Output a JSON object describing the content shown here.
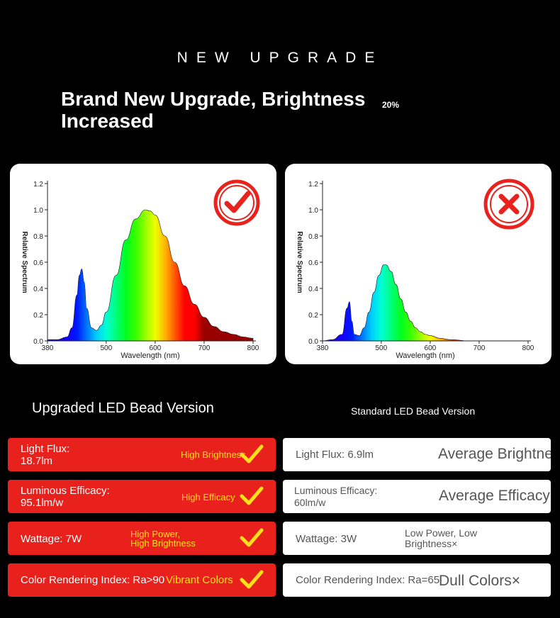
{
  "header": {
    "label": "NEW UPGRADE",
    "headline": "Brand New Upgrade, Brightness Increased",
    "increase": "20%"
  },
  "chart_data": [
    {
      "type": "area",
      "xlabel": "Wavelength (nm)",
      "ylabel": "Relative Spectrum",
      "xticks": [
        380,
        500,
        600,
        700,
        800
      ],
      "xtick_labels": [
        "380",
        "500",
        "600",
        "700",
        "800"
      ],
      "yticks": [
        0.0,
        0.2,
        0.4,
        0.6,
        0.8,
        1.0,
        1.2
      ],
      "ytick_labels": [
        "0.0",
        "0.2",
        "0.4",
        "0.6",
        "0.8",
        "1.0",
        "1.2"
      ],
      "xlim": [
        380,
        800
      ],
      "ylim": [
        0,
        1.2
      ],
      "x": [
        380,
        400,
        420,
        430,
        440,
        445,
        450,
        455,
        460,
        470,
        480,
        490,
        500,
        520,
        540,
        560,
        580,
        590,
        600,
        620,
        640,
        660,
        680,
        700,
        720,
        740,
        760,
        780,
        800
      ],
      "y": [
        0.01,
        0.01,
        0.03,
        0.1,
        0.35,
        0.5,
        0.55,
        0.45,
        0.25,
        0.1,
        0.08,
        0.12,
        0.22,
        0.5,
        0.77,
        0.93,
        1.0,
        0.99,
        0.96,
        0.8,
        0.6,
        0.42,
        0.28,
        0.18,
        0.11,
        0.07,
        0.05,
        0.03,
        0.02
      ],
      "status": "good"
    },
    {
      "type": "area",
      "xlabel": "Wavelength (nm)",
      "ylabel": "Relative Spectrum",
      "xticks": [
        380,
        500,
        600,
        700,
        800
      ],
      "xtick_labels": [
        "380",
        "500",
        "600",
        "700",
        "800"
      ],
      "yticks": [
        0.0,
        0.2,
        0.4,
        0.6,
        0.8,
        1.0,
        1.2
      ],
      "ytick_labels": [
        "0.0",
        "0.2",
        "0.4",
        "0.6",
        "0.8",
        "1.0",
        "1.2"
      ],
      "xlim": [
        380,
        800
      ],
      "ylim": [
        0,
        1.2
      ],
      "x": [
        380,
        400,
        420,
        430,
        435,
        440,
        445,
        455,
        465,
        475,
        485,
        495,
        505,
        510,
        520,
        530,
        540,
        550,
        560,
        570,
        580,
        590,
        600,
        620,
        640,
        680,
        720,
        800
      ],
      "y": [
        0.0,
        0.01,
        0.05,
        0.25,
        0.3,
        0.15,
        0.05,
        0.04,
        0.1,
        0.22,
        0.37,
        0.5,
        0.58,
        0.58,
        0.53,
        0.43,
        0.32,
        0.22,
        0.15,
        0.1,
        0.07,
        0.05,
        0.04,
        0.02,
        0.01,
        0.0,
        0.0,
        0.0
      ],
      "status": "bad"
    }
  ],
  "versions": {
    "upgraded": "Upgraded LED Bead Version",
    "standard": "Standard LED Bead Version"
  },
  "upgraded_rows": [
    {
      "text": "Light Flux: 18.7lm",
      "tag": "High Brightness"
    },
    {
      "text": "Luminous Efficacy: 95.1lm/w",
      "tag": "High Efficacy"
    },
    {
      "text": "Wattage: 7W",
      "tag": "High Power, High Brightness"
    },
    {
      "text": "Color Rendering Index: Ra>90",
      "tag": "Vibrant Colors"
    }
  ],
  "standard_rows": [
    {
      "text": "Light Flux: 6.9lm",
      "tag": "Average Brightness×"
    },
    {
      "text": "Luminous Efficacy: 60lm/w",
      "tag": "Average Efficacy×"
    },
    {
      "text": "Wattage: 3W",
      "tag": "Low Power, Low Brightness×"
    },
    {
      "text": "Color Rendering Index: Ra=65",
      "tag": "Dull Colors×"
    }
  ],
  "colors": {
    "upgraded_row": "#e8211d",
    "check": "#ffe01a",
    "badge_red": "#e8231e"
  }
}
